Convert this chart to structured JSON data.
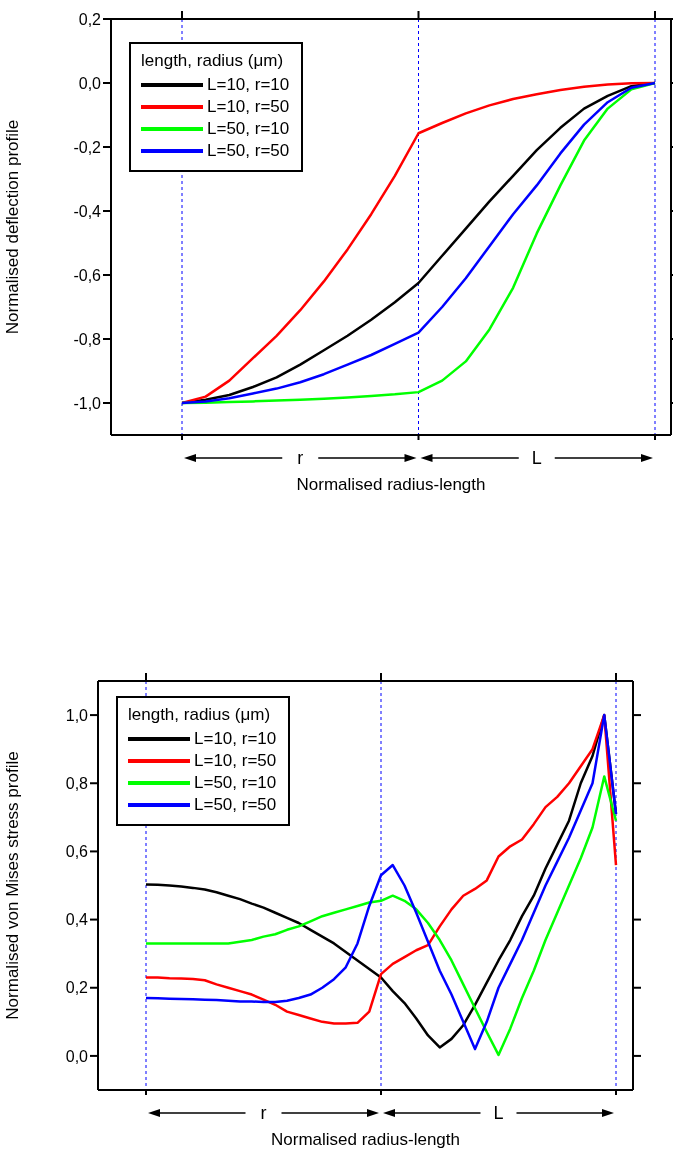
{
  "chart_data": [
    {
      "type": "line",
      "xlabel": "Normalised radius-length",
      "ylabel": "Normalised deflection profile",
      "legend_title": "length, radius (μm)",
      "legend": "top left",
      "categories": [
        null,
        null,
        null,
        null,
        null,
        null,
        null,
        null,
        null,
        null,
        null,
        null,
        null,
        null,
        null,
        null,
        null,
        null,
        null,
        null,
        null
      ],
      "ylim": [
        -1.1,
        0.2
      ],
      "yticks": [
        {
          "value": -1,
          "label": "-1,0"
        },
        {
          "value": -0.8,
          "label": "-0,8"
        },
        {
          "value": -0.6,
          "label": "-0,6"
        },
        {
          "value": -0.4,
          "label": "-0,4"
        },
        {
          "value": -0.2,
          "label": "-0,2"
        },
        {
          "value": 0,
          "label": "0,0"
        },
        {
          "value": 0.2,
          "label": "0,2"
        }
      ],
      "grid": "x",
      "annotations": [
        "r",
        "L"
      ],
      "series": [
        {
          "name": "L=10, r=10",
          "color": "#000000",
          "values": [
            -1,
            -0.99,
            -0.975,
            -0.95,
            -0.92,
            -0.88,
            -0.835,
            -0.79,
            -0.74,
            -0.685,
            -0.625,
            -0.54,
            -0.455,
            -0.37,
            -0.29,
            -0.21,
            -0.14,
            -0.08,
            -0.04,
            -0.01,
            0
          ]
        },
        {
          "name": "L=10, r=50",
          "color": "#ff0000",
          "values": [
            -1,
            -0.98,
            -0.93,
            -0.86,
            -0.79,
            -0.71,
            -0.62,
            -0.52,
            -0.41,
            -0.29,
            -0.157,
            -0.125,
            -0.095,
            -0.07,
            -0.05,
            -0.035,
            -0.022,
            -0.012,
            -0.005,
            -0.001,
            0
          ]
        },
        {
          "name": "L=50, r=10",
          "color": "#00ff00",
          "values": [
            -1,
            -0.999,
            -0.997,
            -0.995,
            -0.992,
            -0.99,
            -0.987,
            -0.983,
            -0.978,
            -0.973,
            -0.966,
            -0.93,
            -0.87,
            -0.77,
            -0.64,
            -0.47,
            -0.32,
            -0.18,
            -0.08,
            -0.02,
            0
          ]
        },
        {
          "name": "L=50, r=50",
          "color": "#0000ff",
          "values": [
            -1,
            -0.995,
            -0.985,
            -0.97,
            -0.955,
            -0.935,
            -0.91,
            -0.88,
            -0.85,
            -0.815,
            -0.78,
            -0.7,
            -0.61,
            -0.51,
            -0.41,
            -0.32,
            -0.22,
            -0.13,
            -0.06,
            -0.015,
            0
          ]
        }
      ]
    },
    {
      "type": "line",
      "xlabel": "Normalised radius-length",
      "ylabel": "Normalised von Mises stress profile",
      "legend_title": "length, radius (μm)",
      "legend": "top left",
      "categories": [
        null,
        null,
        null,
        null,
        null,
        null,
        null,
        null,
        null,
        null,
        null,
        null,
        null,
        null,
        null,
        null,
        null,
        null,
        null,
        null,
        null,
        null,
        null,
        null,
        null,
        null,
        null,
        null,
        null,
        null,
        null,
        null,
        null,
        null,
        null,
        null,
        null,
        null,
        null,
        null,
        null
      ],
      "ylim": [
        -0.1,
        1.1
      ],
      "yticks": [
        {
          "value": 0,
          "label": "0,0"
        },
        {
          "value": 0.2,
          "label": "0,2"
        },
        {
          "value": 0.4,
          "label": "0,4"
        },
        {
          "value": 0.6,
          "label": "0,6"
        },
        {
          "value": 0.8,
          "label": "0,8"
        },
        {
          "value": 1,
          "label": "1,0"
        }
      ],
      "grid": "x",
      "annotations": [
        "r",
        "L"
      ],
      "series": [
        {
          "name": "L=10, r=10",
          "color": "#000000",
          "values": [
            0.503,
            0.502,
            0.5,
            0.497,
            0.493,
            0.488,
            0.48,
            0.47,
            0.46,
            0.447,
            0.435,
            0.42,
            0.405,
            0.39,
            0.37,
            0.35,
            0.33,
            0.305,
            0.28,
            0.255,
            0.23,
            0.19,
            0.155,
            0.11,
            0.06,
            0.025,
            0.05,
            0.09,
            0.15,
            0.215,
            0.28,
            0.34,
            0.41,
            0.47,
            0.55,
            0.62,
            0.69,
            0.8,
            0.88,
            1,
            0.71
          ]
        },
        {
          "name": "L=10, r=50",
          "color": "#ff0000",
          "values": [
            0.23,
            0.23,
            0.228,
            0.227,
            0.226,
            0.222,
            0.21,
            0.2,
            0.19,
            0.18,
            0.165,
            0.15,
            0.13,
            0.12,
            0.11,
            0.1,
            0.095,
            0.095,
            0.097,
            0.13,
            0.24,
            0.27,
            0.29,
            0.31,
            0.325,
            0.38,
            0.43,
            0.47,
            0.49,
            0.515,
            0.585,
            0.615,
            0.635,
            0.68,
            0.73,
            0.76,
            0.8,
            0.85,
            0.9,
            1,
            0.56
          ]
        },
        {
          "name": "L=50, r=10",
          "color": "#00ff00",
          "values": [
            0.33,
            0.33,
            0.33,
            0.33,
            0.33,
            0.33,
            0.33,
            0.33,
            0.335,
            0.34,
            0.35,
            0.357,
            0.37,
            0.38,
            0.395,
            0.41,
            0.42,
            0.43,
            0.44,
            0.45,
            0.455,
            0.47,
            0.455,
            0.43,
            0.39,
            0.34,
            0.28,
            0.21,
            0.14,
            0.07,
            0.003,
            0.08,
            0.17,
            0.25,
            0.34,
            0.42,
            0.5,
            0.58,
            0.67,
            0.82,
            0.69
          ]
        },
        {
          "name": "L=50, r=50",
          "color": "#0000ff",
          "values": [
            0.17,
            0.169,
            0.168,
            0.167,
            0.166,
            0.165,
            0.164,
            0.162,
            0.16,
            0.16,
            0.158,
            0.158,
            0.162,
            0.17,
            0.18,
            0.2,
            0.225,
            0.26,
            0.33,
            0.44,
            0.53,
            0.56,
            0.5,
            0.42,
            0.335,
            0.25,
            0.18,
            0.1,
            0.02,
            0.1,
            0.2,
            0.27,
            0.34,
            0.42,
            0.5,
            0.57,
            0.64,
            0.72,
            0.8,
            1,
            0.71
          ]
        }
      ]
    }
  ]
}
